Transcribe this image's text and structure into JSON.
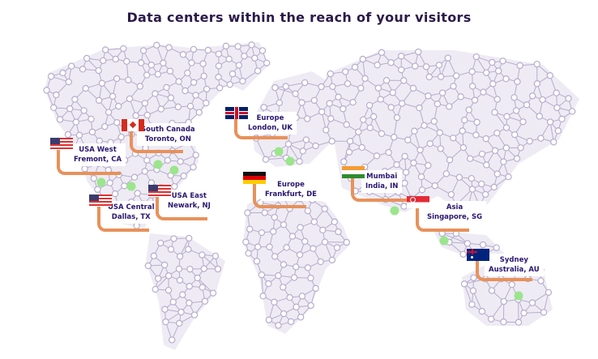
{
  "title": "Data centers within the reach of your visitors",
  "colors": {
    "land": "#eeebf4",
    "network": "#b7adcc",
    "node": "#ffffff",
    "marker": "#9be58c",
    "accent": "#e8915a",
    "text": "#2a1670"
  },
  "locations": [
    {
      "region": "USA West",
      "city": "Fremont, CA",
      "flag": "us-flag-icon"
    },
    {
      "region": "South Canada",
      "city": "Toronto, ON",
      "flag": "canada-flag-icon"
    },
    {
      "region": "USA Central",
      "city": "Dallas, TX",
      "flag": "us-flag-icon"
    },
    {
      "region": "USA East",
      "city": "Newark, NJ",
      "flag": "us-flag-icon"
    },
    {
      "region": "Europe",
      "city": "London, UK",
      "flag": "uk-flag-icon"
    },
    {
      "region": "Europe",
      "city": "Frankfurt, DE",
      "flag": "germany-flag-icon"
    },
    {
      "region": "Mumbai",
      "city": "India, IN",
      "flag": "india-flag-icon"
    },
    {
      "region": "Asia",
      "city": "Singapore, SG",
      "flag": "singapore-flag-icon"
    },
    {
      "region": "Sydney",
      "city": "Australia, AU",
      "flag": "australia-flag-icon"
    }
  ]
}
